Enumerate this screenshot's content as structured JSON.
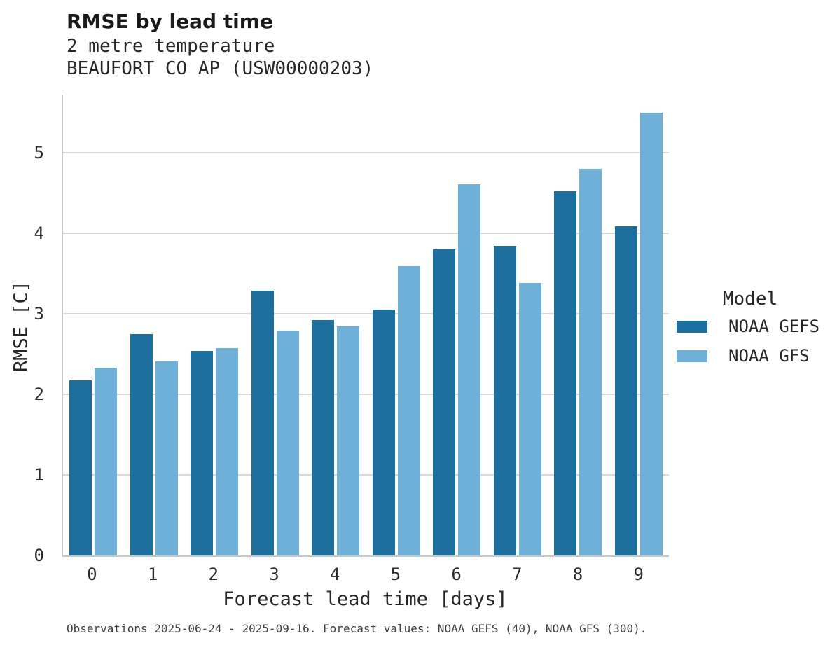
{
  "chart_data": {
    "type": "bar",
    "title": "RMSE by lead time",
    "subtitle_line1": "2 metre temperature",
    "subtitle_line2": "BEAUFORT CO AP (USW00000203)",
    "xlabel": "Forecast lead time [days]",
    "ylabel": "RMSE [C]",
    "categories": [
      "0",
      "1",
      "2",
      "3",
      "4",
      "5",
      "6",
      "7",
      "8",
      "9"
    ],
    "series": [
      {
        "name": "NOAA GEFS",
        "color": "#1d6f9e",
        "values": [
          2.17,
          2.75,
          2.54,
          3.29,
          2.92,
          3.05,
          3.8,
          3.84,
          4.52,
          4.09
        ]
      },
      {
        "name": "NOAA GFS",
        "color": "#6fb0d8",
        "values": [
          2.33,
          2.41,
          2.57,
          2.79,
          2.84,
          3.59,
          4.61,
          3.38,
          4.8,
          5.5
        ]
      }
    ],
    "yticks": [
      0,
      1,
      2,
      3,
      4,
      5
    ],
    "ylim": [
      0,
      5.74
    ],
    "grid": "horizontal",
    "legend_title": "Model",
    "legend_position": "right",
    "footer": "Observations 2025-06-24 - 2025-09-16. Forecast values: NOAA GEFS (40), NOAA GFS (300)."
  },
  "colors": {
    "gridline": "#d9d9d9",
    "spine": "#c7c7c7",
    "title_text": "#1a1a1a",
    "body_text": "#262626"
  }
}
